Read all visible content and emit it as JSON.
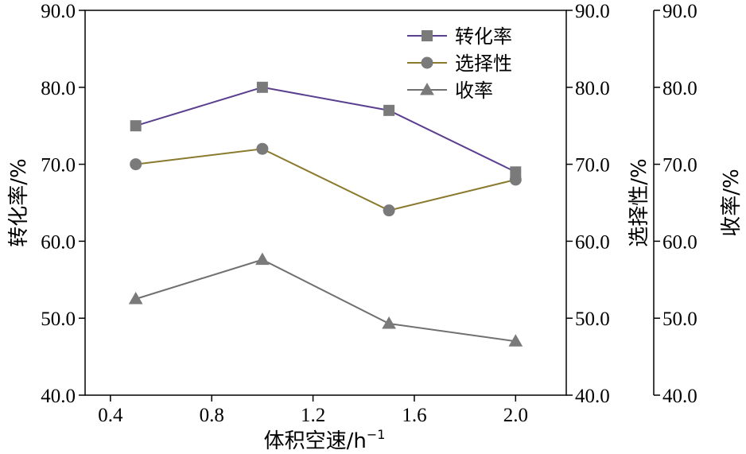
{
  "chart_data": {
    "type": "line",
    "x": [
      0.5,
      1.0,
      1.5,
      2.0
    ],
    "xlabel": "体积空速/h",
    "xlabel_sup": "−1",
    "xlim": [
      0.3,
      2.2
    ],
    "xticks": [
      "0.4",
      "0.8",
      "1.2",
      "1.6",
      "2.0"
    ],
    "ylim": [
      40,
      90
    ],
    "yticks": [
      "40.0",
      "50.0",
      "60.0",
      "70.0",
      "80.0",
      "90.0"
    ],
    "axes": [
      {
        "label": "转化率/%",
        "position": "left"
      },
      {
        "label": "选择性/%",
        "position": "right"
      },
      {
        "label": "收率/%",
        "position": "right-offset"
      }
    ],
    "legend_position": "top-right",
    "series": [
      {
        "name": "转化率",
        "values": [
          75.0,
          80.0,
          77.0,
          69.0
        ],
        "color": "#5b3f8f",
        "marker": "square",
        "axis": "left"
      },
      {
        "name": "选择性",
        "values": [
          70.0,
          72.0,
          64.0,
          68.0
        ],
        "color": "#8a7a2e",
        "marker": "circle",
        "axis": "right"
      },
      {
        "name": "收率",
        "values": [
          52.5,
          57.6,
          49.3,
          47.0
        ],
        "color": "#707070",
        "marker": "triangle",
        "axis": "right-offset"
      }
    ]
  }
}
